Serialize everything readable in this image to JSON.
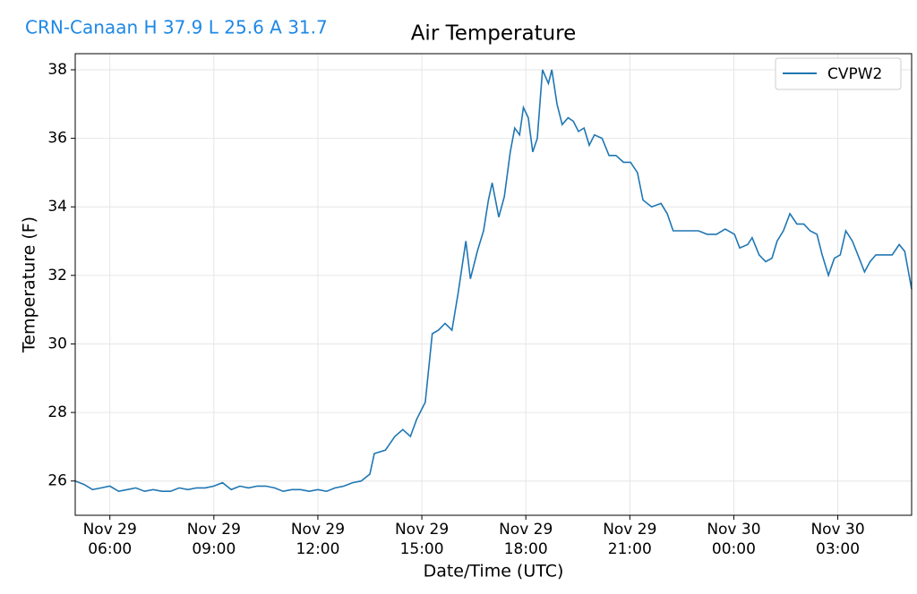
{
  "chart_data": {
    "type": "line",
    "title": "Air Temperature",
    "annotation": "CRN-Canaan H 37.9 L 25.6 A 31.7",
    "x_label": "Date/Time (UTC)",
    "y_label": "Temperature (F)",
    "xlim": [
      5,
      29.13
    ],
    "ylim": [
      25.0,
      38.47
    ],
    "xticks": [
      {
        "value": 6,
        "label": "Nov 29\n06:00"
      },
      {
        "value": 9,
        "label": "Nov 29\n09:00"
      },
      {
        "value": 12,
        "label": "Nov 29\n12:00"
      },
      {
        "value": 15,
        "label": "Nov 29\n15:00"
      },
      {
        "value": 18,
        "label": "Nov 29\n18:00"
      },
      {
        "value": 21,
        "label": "Nov 29\n21:00"
      },
      {
        "value": 24,
        "label": "Nov 30\n00:00"
      },
      {
        "value": 27,
        "label": "Nov 30\n03:00"
      }
    ],
    "yticks": [
      26,
      28,
      30,
      32,
      34,
      36,
      38
    ],
    "grid": true,
    "legend": "upper right",
    "x": [
      5.0,
      5.25,
      5.5,
      5.75,
      6.0,
      6.25,
      6.5,
      6.75,
      7.0,
      7.25,
      7.5,
      7.75,
      8.0,
      8.25,
      8.5,
      8.75,
      9.0,
      9.25,
      9.5,
      9.75,
      10.0,
      10.25,
      10.5,
      10.75,
      11.0,
      11.25,
      11.5,
      11.75,
      12.0,
      12.25,
      12.5,
      12.75,
      13.0,
      13.25,
      13.5,
      13.63,
      13.95,
      14.22,
      14.45,
      14.67,
      14.85,
      15.1,
      15.3,
      15.48,
      15.67,
      15.87,
      16.05,
      16.27,
      16.4,
      16.6,
      16.78,
      16.92,
      17.03,
      17.22,
      17.38,
      17.55,
      17.68,
      17.82,
      17.93,
      18.07,
      18.2,
      18.33,
      18.48,
      18.65,
      18.75,
      18.9,
      19.05,
      19.22,
      19.37,
      19.52,
      19.68,
      19.83,
      19.98,
      20.2,
      20.4,
      20.6,
      20.82,
      21.02,
      21.22,
      21.38,
      21.63,
      21.9,
      22.08,
      22.25,
      22.47,
      22.72,
      22.98,
      23.23,
      23.5,
      23.75,
      24.02,
      24.17,
      24.4,
      24.53,
      24.73,
      24.92,
      25.1,
      25.25,
      25.43,
      25.62,
      25.82,
      26.02,
      26.2,
      26.4,
      26.55,
      26.73,
      26.9,
      27.07,
      27.23,
      27.42,
      27.58,
      27.77,
      27.93,
      28.1,
      28.35,
      28.57,
      28.77,
      28.93,
      29.13
    ],
    "series": [
      {
        "name": "CVPW2",
        "color": "#1f77b4",
        "values": [
          26.0,
          25.9,
          25.75,
          25.8,
          25.85,
          25.7,
          25.75,
          25.8,
          25.7,
          25.75,
          25.7,
          25.7,
          25.8,
          25.75,
          25.8,
          25.8,
          25.85,
          25.95,
          25.75,
          25.85,
          25.8,
          25.85,
          25.85,
          25.8,
          25.7,
          25.75,
          25.75,
          25.7,
          25.75,
          25.7,
          25.8,
          25.85,
          25.95,
          26.0,
          26.2,
          26.8,
          26.9,
          27.3,
          27.5,
          27.3,
          27.8,
          28.3,
          30.3,
          30.4,
          30.6,
          30.4,
          31.5,
          33.0,
          31.9,
          32.7,
          33.3,
          34.2,
          34.7,
          33.7,
          34.3,
          35.6,
          36.3,
          36.1,
          36.9,
          36.6,
          35.6,
          36.0,
          38.0,
          37.6,
          38.0,
          37.0,
          36.4,
          36.6,
          36.5,
          36.2,
          36.3,
          35.8,
          36.1,
          36.0,
          35.5,
          35.5,
          35.3,
          35.3,
          35.0,
          34.2,
          34.0,
          34.1,
          33.8,
          33.3,
          33.3,
          33.3,
          33.3,
          33.2,
          33.2,
          33.35,
          33.2,
          32.8,
          32.9,
          33.1,
          32.6,
          32.4,
          32.5,
          33.0,
          33.3,
          33.8,
          33.5,
          33.5,
          33.3,
          33.2,
          32.6,
          32.0,
          32.5,
          32.6,
          33.3,
          33.0,
          32.6,
          32.1,
          32.4,
          32.6,
          32.6,
          32.6,
          32.9,
          32.7,
          31.6
        ]
      }
    ]
  }
}
